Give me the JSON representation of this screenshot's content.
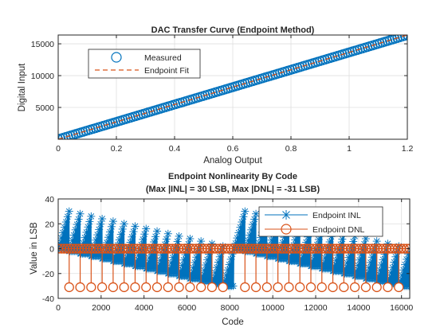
{
  "chart_data": [
    {
      "type": "scatter",
      "title": "DAC Transfer Curve (Endpoint Method)",
      "xlabel": "Analog Output",
      "ylabel": "Digital Input",
      "xlim": [
        0,
        1.2
      ],
      "ylim": [
        0,
        16383
      ],
      "xticks": [
        0,
        0.2,
        0.4,
        0.6,
        0.8,
        1,
        1.2
      ],
      "xtick_labels": [
        "0",
        "0.2",
        "0.4",
        "0.6",
        "0.8",
        "1",
        "1.2"
      ],
      "yticks": [
        5000,
        10000,
        15000
      ],
      "ytick_labels": [
        "5000",
        "10000",
        "15000"
      ],
      "grid": true,
      "legend": "top-left",
      "series": [
        {
          "name": "Measured",
          "style": "circle-marker",
          "color": "#0072BD",
          "x": [
            0,
            1.2
          ],
          "y": [
            0,
            16383
          ]
        },
        {
          "name": "Endpoint Fit",
          "style": "dashed-line",
          "color": "#D95319",
          "x": [
            0,
            1.2
          ],
          "y": [
            0,
            16383
          ]
        }
      ]
    },
    {
      "type": "line",
      "title": "Endpoint Nonlinearity By Code",
      "subtitle": "(Max |INL| = 30 LSB, Max |DNL| = -31 LSB)",
      "xlabel": "Code",
      "ylabel": "Value in LSB",
      "xlim": [
        0,
        16383
      ],
      "ylim": [
        -40,
        40
      ],
      "xticks": [
        0,
        2000,
        4000,
        6000,
        8000,
        10000,
        12000,
        14000,
        16000
      ],
      "xtick_labels": [
        "0",
        "2000",
        "4000",
        "6000",
        "8000",
        "10000",
        "12000",
        "14000",
        "16000"
      ],
      "yticks": [
        -40,
        -20,
        0,
        20,
        40
      ],
      "ytick_labels": [
        "-40",
        "-20",
        "0",
        "20",
        "40"
      ],
      "grid": true,
      "legend": "top-right",
      "series": [
        {
          "name": "Endpoint INL",
          "style": "line-asterisk",
          "color": "#0072BD",
          "sawtooth_period": 512,
          "x": [
            0,
            512,
            513,
            1024,
            1025,
            1536,
            1537,
            2048,
            2049,
            2560,
            2561,
            3072,
            3073,
            3584,
            3585,
            4096,
            4097,
            4608,
            4609,
            5120,
            5121,
            5632,
            5633,
            6144,
            6145,
            6656,
            6657,
            7168,
            7169,
            7680,
            7681,
            8192,
            8193,
            8704,
            8705,
            9216,
            9217,
            9728,
            9729,
            10240,
            10241,
            10752,
            10753,
            11264,
            11265,
            11776,
            11777,
            12288,
            12289,
            12800,
            12801,
            13312,
            13313,
            13824,
            13825,
            14336,
            14337,
            14848,
            14849,
            15360,
            15361,
            15872,
            15873,
            16383
          ],
          "y": [
            0,
            30,
            -2,
            28,
            -4,
            26,
            -6,
            24,
            -8,
            22,
            -10,
            20,
            -12,
            18,
            -14,
            16,
            -16,
            14,
            -18,
            12,
            -20,
            10,
            -22,
            8,
            -24,
            6,
            -26,
            4,
            -28,
            2,
            -30,
            0,
            0,
            30,
            -2,
            28,
            -4,
            26,
            -6,
            24,
            -8,
            22,
            -10,
            20,
            -12,
            18,
            -14,
            16,
            -16,
            14,
            -18,
            12,
            -20,
            10,
            -22,
            8,
            -24,
            6,
            -26,
            4,
            -28,
            2,
            -30,
            0
          ]
        },
        {
          "name": "Endpoint DNL",
          "style": "stem-circle",
          "color": "#D95319",
          "baseline": 0,
          "spikes_x": [
            512,
            1024,
            1536,
            2048,
            2560,
            3072,
            3584,
            4096,
            4608,
            5120,
            5632,
            6144,
            6656,
            7168,
            7680,
            8704,
            9216,
            9728,
            10240,
            10752,
            11264,
            11776,
            12288,
            12800,
            13312,
            13824,
            14336,
            14848,
            15360,
            15872
          ],
          "spikes_y": -31
        }
      ]
    }
  ]
}
